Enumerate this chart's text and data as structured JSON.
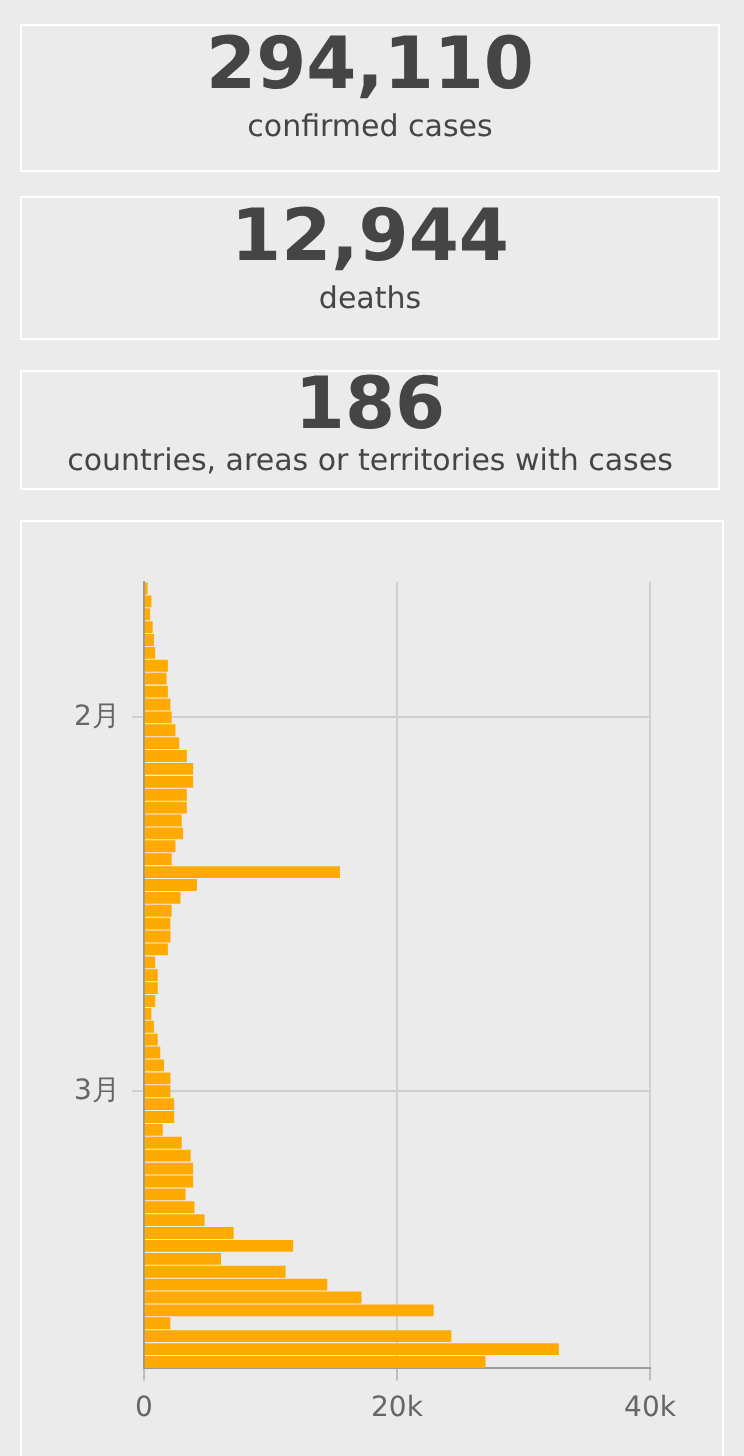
{
  "chart_data": [
    {
      "type": "other",
      "title": "294,110",
      "subtitle": "confirmed cases"
    },
    {
      "type": "other",
      "title": "12,944",
      "subtitle": "deaths"
    },
    {
      "type": "other",
      "title": "186",
      "subtitle": "countries, areas or territories with cases"
    },
    {
      "type": "bar",
      "orientation": "horizontal",
      "color": "#ffaa00",
      "grid": true,
      "categories": [
        null,
        null,
        null,
        null,
        null,
        null,
        null,
        null,
        null,
        null,
        "2月",
        null,
        null,
        null,
        null,
        null,
        null,
        null,
        null,
        null,
        null,
        null,
        null,
        null,
        null,
        null,
        null,
        null,
        null,
        null,
        null,
        null,
        null,
        null,
        null,
        null,
        null,
        null,
        null,
        "3月",
        null,
        null,
        null,
        null,
        null,
        null,
        null,
        null,
        null,
        null,
        null,
        null,
        null,
        null,
        null,
        null,
        null,
        null,
        null,
        null,
        null
      ],
      "values": [
        300,
        600,
        500,
        700,
        800,
        900,
        1900,
        1800,
        1900,
        2100,
        2200,
        2500,
        2800,
        3400,
        3900,
        3900,
        3400,
        3400,
        3000,
        3100,
        2500,
        2200,
        15500,
        4200,
        2900,
        2200,
        2100,
        2100,
        1900,
        900,
        1100,
        1100,
        900,
        600,
        800,
        1100,
        1300,
        1600,
        2100,
        2100,
        2400,
        2400,
        1500,
        3000,
        3700,
        3900,
        3900,
        3300,
        4000,
        4800,
        7100,
        11800,
        6100,
        11200,
        14500,
        17200,
        22900,
        2100,
        24300,
        32800,
        27000
      ],
      "xlim": [
        0,
        40000
      ],
      "xticks": [
        0,
        {
          "value": 20000,
          "label": "20k"
        },
        {
          "value": 40000,
          "label": "40k"
        }
      ]
    }
  ]
}
